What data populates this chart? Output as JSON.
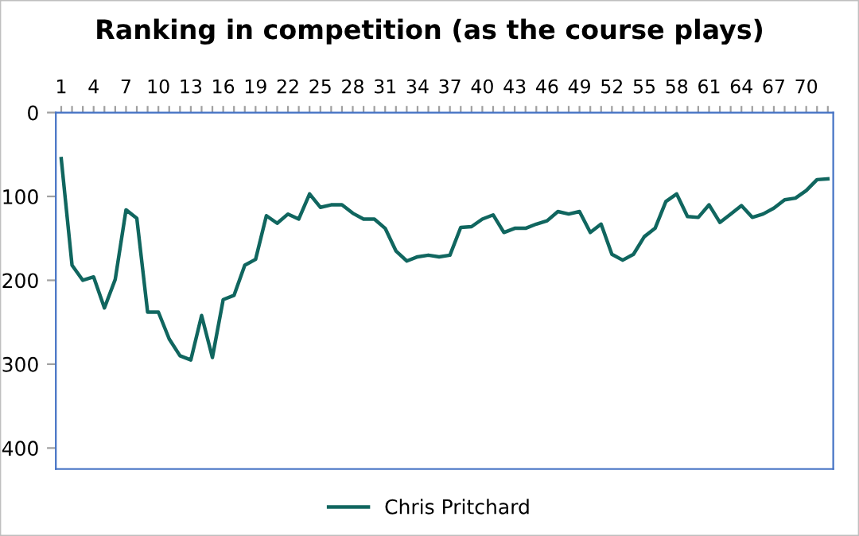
{
  "chart_data": {
    "type": "line",
    "title": "Ranking in competition (as the course plays)",
    "categories": [
      "1",
      null,
      null,
      "4",
      null,
      null,
      "7",
      null,
      null,
      "10",
      null,
      null,
      "13",
      null,
      null,
      "16",
      null,
      null,
      "19",
      null,
      null,
      "22",
      null,
      null,
      "25",
      null,
      null,
      "28",
      null,
      null,
      "31",
      null,
      null,
      "34",
      null,
      null,
      "37",
      null,
      null,
      "40",
      null,
      null,
      "43",
      null,
      null,
      "46",
      null,
      null,
      "49",
      null,
      null,
      "52",
      null,
      null,
      "55",
      null,
      null,
      "58",
      null,
      null,
      "61",
      null,
      null,
      "64",
      null,
      null,
      "67",
      null,
      null,
      "70",
      null,
      null
    ],
    "series": [
      {
        "name": "Chris Pritchard",
        "color": "#10665f",
        "values": [
          55,
          182,
          200,
          196,
          233,
          199,
          116,
          126,
          238,
          238,
          270,
          290,
          295,
          242,
          292,
          223,
          218,
          182,
          175,
          123,
          132,
          121,
          127,
          97,
          113,
          110,
          110,
          120,
          127,
          127,
          138,
          165,
          177,
          172,
          170,
          172,
          170,
          137,
          136,
          127,
          122,
          143,
          138,
          138,
          133,
          129,
          118,
          121,
          118,
          143,
          133,
          169,
          176,
          169,
          148,
          138,
          106,
          97,
          124,
          125,
          110,
          131,
          121,
          111,
          125,
          121,
          114,
          104,
          102,
          93,
          80,
          79
        ]
      }
    ],
    "ylim": [
      425,
      0
    ],
    "yticks": [
      0,
      100,
      200,
      300,
      400
    ],
    "grid": false,
    "legend": "bottom",
    "marker": "none",
    "line_style": "solid"
  }
}
